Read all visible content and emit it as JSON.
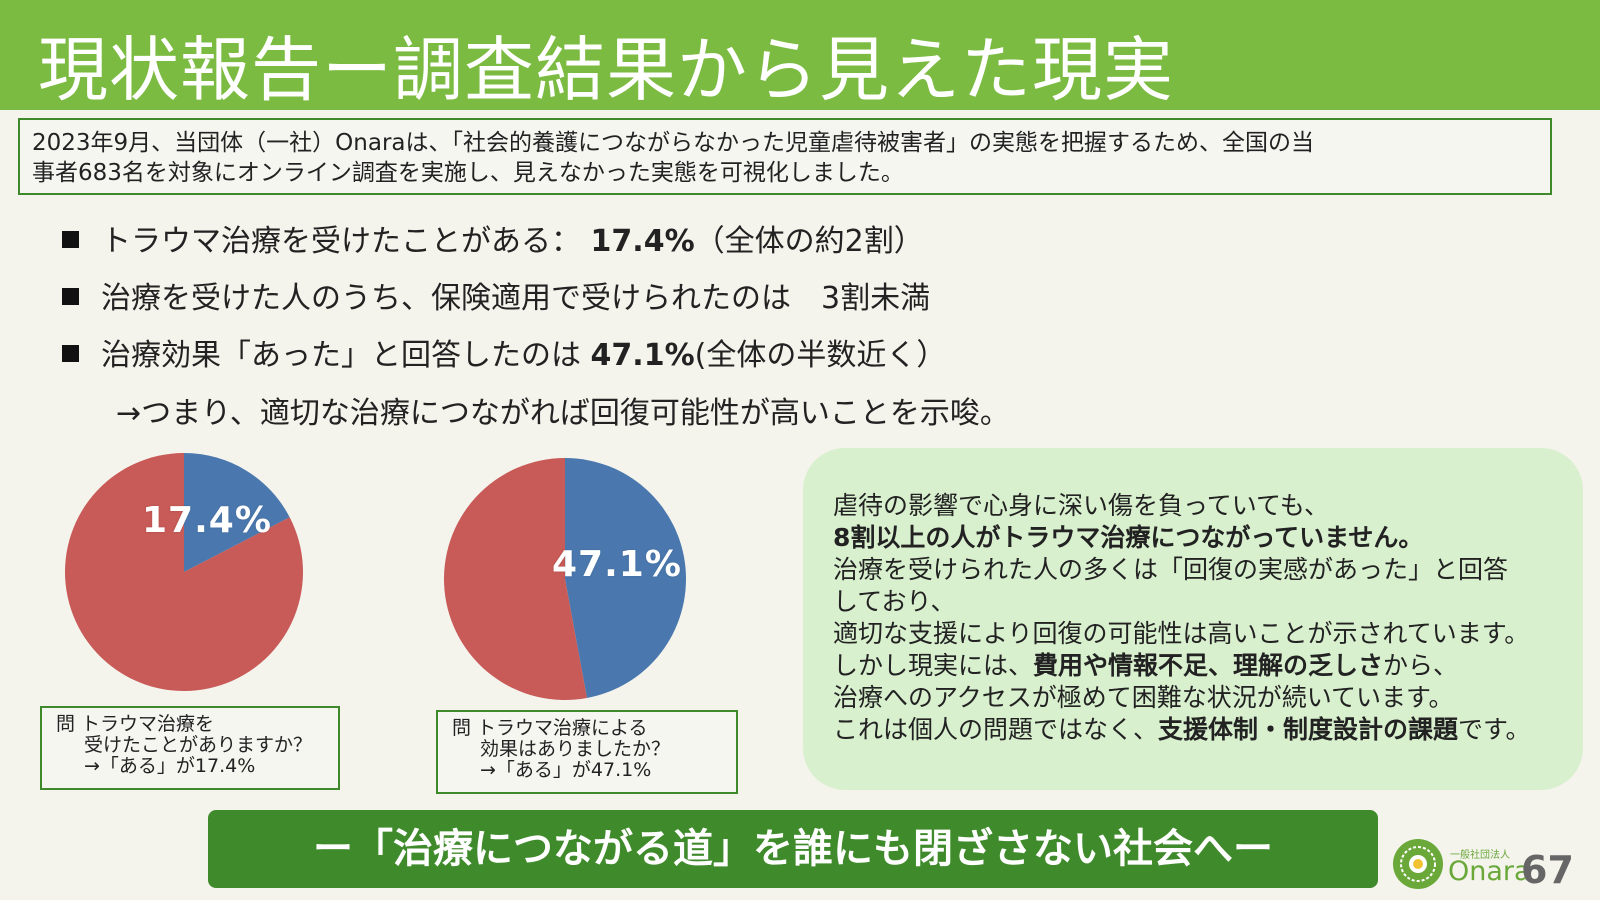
{
  "header": {
    "title": "現状報告ー調査結果から見えた現実"
  },
  "intro": {
    "line1": "2023年9月、当団体（一社）Onaraは、「社会的養護につながらなかった児童虐待被害者」の実態を把握するため、全国の当",
    "line2": "事者683名を対象にオンライン調査を実施し、見えなかった実態を可視化しました。"
  },
  "bullets": [
    {
      "pre": "トラウマ治療を受けたことがある：",
      "bold": "17.4%",
      "post": "（全体の約2割）"
    },
    {
      "pre": "治療を受けた人のうち、保険適用で受けられたのは　3割未満",
      "bold": "",
      "post": ""
    },
    {
      "pre": "治療効果「あった」と回答したのは",
      "bold": "47.1%",
      "post": "(全体の半数近く）"
    }
  ],
  "implication": "→つまり、適切な治療につながれば回復可能性が高いことを示唆。",
  "chart_data": [
    {
      "type": "pie",
      "slices": [
        {
          "label": "17.4%",
          "value": 17.4,
          "color": "#4a78ae"
        },
        {
          "label": "",
          "value": 82.6,
          "color": "#c85a57"
        }
      ]
    },
    {
      "type": "pie",
      "slices": [
        {
          "label": "47.1%",
          "value": 47.1,
          "color": "#4a78ae"
        },
        {
          "label": "",
          "value": 52.9,
          "color": "#c85a57"
        }
      ]
    }
  ],
  "questions": [
    {
      "line1": "問 トラウマ治療を",
      "line2": "受けたことがありますか？",
      "line3": "→「ある」が17.4%"
    },
    {
      "line1": "問 トラウマ治療による",
      "line2": "効果はありましたか？",
      "line3": "→「ある」が47.1%"
    }
  ],
  "callout": {
    "l1": "虐待の影響で心身に深い傷を負っていても、",
    "l2": "8割以上の人がトラウマ治療につながっていません。",
    "l3": "治療を受けられた人の多くは「回復の実感があった」と回答",
    "l4": "しており、",
    "l5": "適切な支援により回復の可能性は高いことが示されています。",
    "l6a": "しかし現実には、",
    "l6b": "費用や情報不足、理解の乏しさ",
    "l6c": "から、",
    "l7": "治療へのアクセスが極めて困難な状況が続いています。",
    "l8a": "これは個人の問題ではなく、",
    "l8b": "支援体制・制度設計の課題",
    "l8c": "です。"
  },
  "banner": "ー「治療につながる道」を誰にも閉ざさない社会へー",
  "footer": {
    "org_small": "一般社団法人",
    "org_name": "Onara",
    "page": "67"
  },
  "colors": {
    "header": "#7bbb41",
    "accent": "#3f8a2b",
    "pie_blue": "#4a78ae",
    "pie_red": "#c85a57",
    "callout_bg": "#d9f0cf"
  },
  "icons": {
    "logo": "flower-logo-icon",
    "bullet": "square-bullet-icon"
  }
}
